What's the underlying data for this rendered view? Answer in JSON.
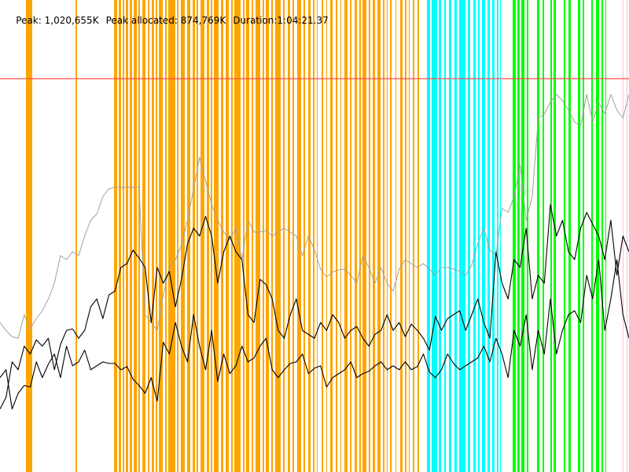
{
  "header": {
    "peak": "Peak: 1,020,655K",
    "peak_allocated": "Peak allocated: 874,769K",
    "duration": "Duration:1:04:21.37"
  },
  "colors": {
    "background": "#ffffff",
    "orange_band": "#ffa500",
    "cyan_band": "#00ffff",
    "green_band": "#00ff00",
    "pink_band": "#ffc0cb",
    "reference_line": "#ff4d4d",
    "upper_series": "#a0a0a0",
    "lower_series": "#000000"
  },
  "chart_data": {
    "type": "line",
    "series": [
      {
        "values": [
          410,
          420,
          428,
          430,
          400,
          418,
          405,
          395,
          380,
          360,
          325,
          330,
          320,
          325,
          300,
          280,
          272,
          250,
          240,
          238,
          238,
          238,
          238,
          238,
          400,
          410,
          420,
          375,
          340,
          330,
          312,
          280,
          240,
          200,
          230,
          260,
          280,
          295,
          305,
          290,
          330,
          280,
          295,
          295,
          293,
          300,
          295,
          290,
          295,
          300,
          325,
          300,
          318,
          342,
          352,
          346,
          343,
          342,
          350,
          360,
          325,
          340,
          360,
          340,
          360,
          370,
          342,
          330,
          335,
          340,
          335,
          342,
          350,
          340,
          340,
          342,
          345,
          350,
          337,
          310,
          290,
          318,
          325,
          265,
          270,
          250,
          210,
          280,
          250,
          150,
          145,
          130,
          120,
          128,
          140,
          155,
          160,
          120,
          155,
          130,
          145,
          120,
          140,
          150,
          120
        ]
      },
      {
        "values": [
          520,
          505,
          460,
          470,
          440,
          450,
          432,
          440,
          430,
          470,
          438,
          420,
          418,
          430,
          420,
          390,
          380,
          405,
          375,
          370,
          340,
          335,
          318,
          328,
          340,
          410,
          340,
          360,
          345,
          390,
          355,
          310,
          290,
          300,
          275,
          300,
          360,
          320,
          300,
          320,
          330,
          400,
          410,
          355,
          362,
          380,
          420,
          430,
          400,
          380,
          420,
          425,
          430,
          410,
          420,
          400,
          410,
          430,
          420,
          415,
          430,
          440,
          425,
          420,
          400,
          420,
          410,
          428,
          412,
          420,
          430,
          445,
          402,
          420,
          405,
          400,
          395,
          420,
          400,
          380,
          410,
          430,
          320,
          360,
          380,
          330,
          340,
          290,
          380,
          350,
          360,
          260,
          300,
          280,
          320,
          330,
          290,
          270,
          285,
          300,
          330,
          280,
          350,
          300,
          320
        ]
      },
      {
        "values": [
          480,
          470,
          520,
          500,
          490,
          492,
          460,
          480,
          463,
          450,
          480,
          440,
          465,
          460,
          445,
          470,
          465,
          460,
          462,
          462,
          470,
          466,
          482,
          490,
          500,
          480,
          510,
          435,
          450,
          410,
          440,
          460,
          400,
          440,
          470,
          420,
          485,
          450,
          475,
          465,
          440,
          460,
          455,
          440,
          430,
          470,
          480,
          470,
          462,
          460,
          450,
          475,
          468,
          465,
          492,
          480,
          475,
          470,
          460,
          480,
          475,
          472,
          465,
          460,
          470,
          465,
          470,
          460,
          470,
          466,
          450,
          473,
          480,
          470,
          450,
          462,
          470,
          465,
          460,
          455,
          440,
          460,
          430,
          450,
          480,
          420,
          440,
          400,
          470,
          420,
          450,
          380,
          450,
          420,
          400,
          395,
          410,
          350,
          380,
          330,
          420,
          380,
          330,
          400,
          430
        ]
      }
    ]
  }
}
